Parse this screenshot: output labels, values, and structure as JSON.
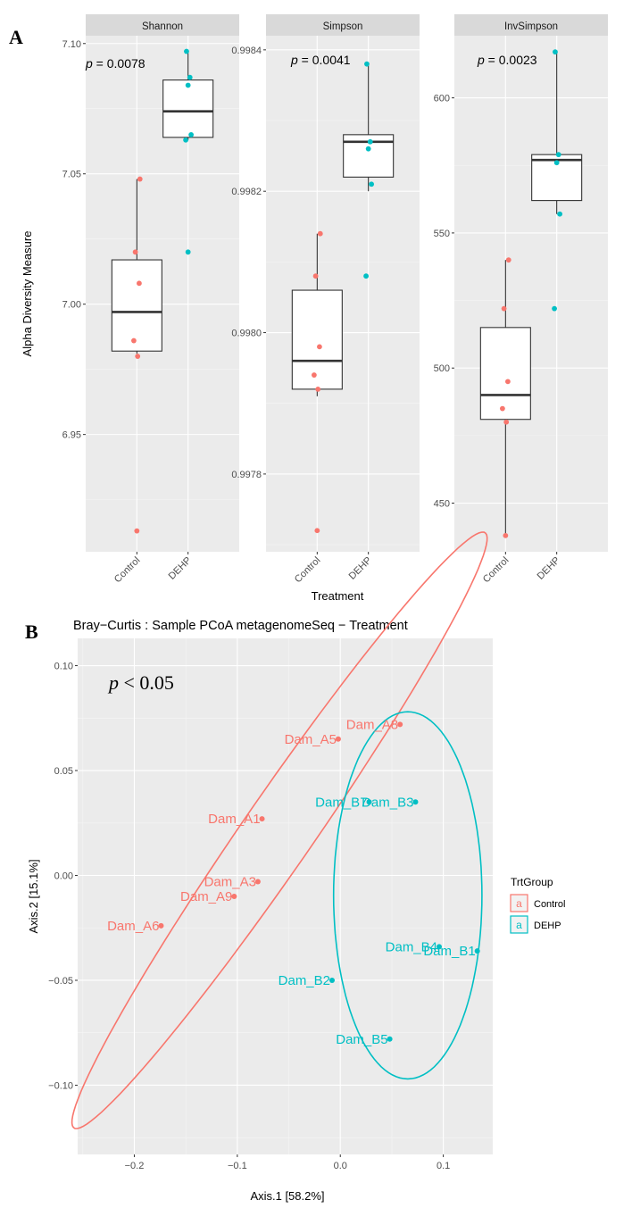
{
  "figure": {
    "label_a": "A",
    "label_b": "B"
  },
  "colors": {
    "control": "#f8766d",
    "dehp": "#00bfc4",
    "box_fill": "#ffffff",
    "box_line": "#333333"
  },
  "chart_data": [
    {
      "type": "box",
      "facet": "Shannon",
      "ylabel": "Alpha Diversity Measure",
      "xlabel": "",
      "p_value": "p = 0.0078",
      "categories": [
        "Control",
        "DEHP"
      ],
      "ylim": [
        6.905,
        7.103
      ],
      "yticks": [
        6.95,
        7.0,
        7.05,
        7.1
      ],
      "ytick_labels": [
        "6.95",
        "7.00",
        "7.05",
        "7.10"
      ],
      "boxes": [
        {
          "category": "Control",
          "lower": 6.981,
          "q1": 6.982,
          "median": 6.997,
          "q3": 7.017,
          "upper": 7.048
        },
        {
          "category": "DEHP",
          "lower": 7.063,
          "q1": 7.064,
          "median": 7.074,
          "q3": 7.086,
          "upper": 7.097
        }
      ],
      "points": [
        {
          "category": "Control",
          "values": [
            7.048,
            7.02,
            7.008,
            6.986,
            6.98,
            6.913
          ]
        },
        {
          "category": "DEHP",
          "values": [
            7.097,
            7.087,
            7.084,
            7.065,
            7.063,
            7.02
          ]
        }
      ]
    },
    {
      "type": "box",
      "facet": "Simpson",
      "ylabel": "",
      "xlabel": "Treatment",
      "p_value": "p = 0.0041",
      "categories": [
        "Control",
        "DEHP"
      ],
      "ylim": [
        0.99769,
        0.99842
      ],
      "yticks": [
        0.9978,
        0.998,
        0.9982,
        0.9984
      ],
      "ytick_labels": [
        "0.9978",
        "0.9980",
        "0.9982",
        "0.9984"
      ],
      "boxes": [
        {
          "category": "Control",
          "lower": 0.99791,
          "q1": 0.99792,
          "median": 0.99796,
          "q3": 0.99806,
          "upper": 0.99814
        },
        {
          "category": "DEHP",
          "lower": 0.9982,
          "q1": 0.99822,
          "median": 0.99827,
          "q3": 0.99828,
          "upper": 0.99838
        }
      ],
      "points": [
        {
          "category": "Control",
          "values": [
            0.99814,
            0.99808,
            0.99798,
            0.99794,
            0.99792,
            0.99772
          ]
        },
        {
          "category": "DEHP",
          "values": [
            0.99838,
            0.99827,
            0.99826,
            0.99821,
            0.99808
          ]
        }
      ]
    },
    {
      "type": "box",
      "facet": "InvSimpson",
      "ylabel": "",
      "xlabel": "",
      "p_value": "p = 0.0023",
      "categories": [
        "Control",
        "DEHP"
      ],
      "ylim": [
        432,
        623
      ],
      "yticks": [
        450,
        500,
        550,
        600
      ],
      "ytick_labels": [
        "450",
        "500",
        "550",
        "600"
      ],
      "boxes": [
        {
          "category": "Control",
          "lower": 438,
          "q1": 481,
          "median": 490,
          "q3": 515,
          "upper": 540
        },
        {
          "category": "DEHP",
          "lower": 557,
          "q1": 562,
          "median": 577,
          "q3": 579,
          "upper": 617
        }
      ],
      "points": [
        {
          "category": "Control",
          "values": [
            540,
            522,
            495,
            485,
            480,
            438
          ]
        },
        {
          "category": "DEHP",
          "values": [
            617,
            579,
            576,
            557,
            522
          ]
        }
      ]
    },
    {
      "type": "scatter",
      "title": "Bray−Curtis : Sample PCoA  metagenomeSeq − Treatment",
      "xlabel": "Axis.1   [58.2%]",
      "ylabel": "Axis.2   [15.1%]",
      "annotation": "p < 0.05",
      "xlim": [
        -0.255,
        0.148
      ],
      "ylim": [
        -0.133,
        0.113
      ],
      "xticks": [
        -0.2,
        -0.1,
        0.0,
        0.1
      ],
      "xtick_labels": [
        "−0.2",
        "−0.1",
        "0.0",
        "0.1"
      ],
      "yticks": [
        -0.1,
        -0.05,
        0.0,
        0.05,
        0.1
      ],
      "ytick_labels": [
        "−0.10",
        "−0.05",
        "0.00",
        "0.05",
        "0.10"
      ],
      "legend": {
        "title": "TrtGroup",
        "glyph": "a",
        "entries": [
          "Control",
          "DEHP"
        ],
        "position": "right"
      },
      "series": [
        {
          "name": "Control",
          "points": [
            {
              "label": "Dam_A8",
              "x": 0.058,
              "y": 0.072
            },
            {
              "label": "Dam_A5",
              "x": -0.002,
              "y": 0.065
            },
            {
              "label": "Dam_A1",
              "x": -0.076,
              "y": 0.027
            },
            {
              "label": "Dam_A3",
              "x": -0.08,
              "y": -0.003
            },
            {
              "label": "Dam_A9",
              "x": -0.103,
              "y": -0.01
            },
            {
              "label": "Dam_A6",
              "x": -0.174,
              "y": -0.024
            }
          ],
          "ellipse": {
            "cx": -0.059,
            "cy": 0.0215,
            "rx": 0.2455,
            "ry": 0.024,
            "angle_deg": 35
          }
        },
        {
          "name": "DEHP",
          "points": [
            {
              "label": "Dam_B7",
              "x": 0.028,
              "y": 0.035
            },
            {
              "label": "Dam_B3",
              "x": 0.073,
              "y": 0.035
            },
            {
              "label": "Dam_B4",
              "x": 0.096,
              "y": -0.034
            },
            {
              "label": "Dam_B1",
              "x": 0.133,
              "y": -0.036
            },
            {
              "label": "Dam_B2",
              "x": -0.008,
              "y": -0.05
            },
            {
              "label": "Dam_B5",
              "x": 0.048,
              "y": -0.078
            }
          ],
          "ellipse": {
            "cx": 0.0655,
            "cy": -0.0095,
            "rx": 0.072,
            "ry": 0.0875,
            "angle_deg": 0
          }
        }
      ]
    }
  ]
}
